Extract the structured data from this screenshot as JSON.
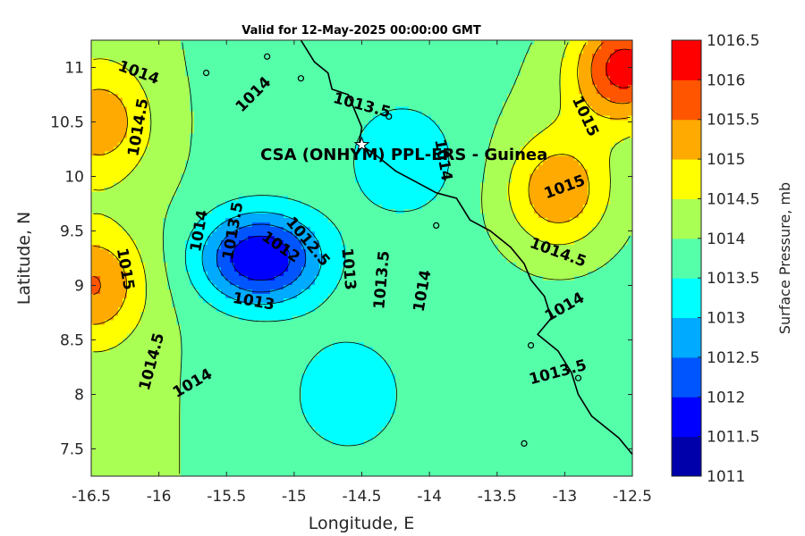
{
  "chart_data": {
    "type": "map",
    "title": "Valid for 12-May-2025 00:00:00 GMT",
    "xlabel": "Longitude, E",
    "ylabel": "Latitude, N",
    "xlim": [
      -16.5,
      -12.5
    ],
    "ylim": [
      7.25,
      11.25
    ],
    "x_ticks": [
      "-16.5",
      "-16",
      "-15.5",
      "-15",
      "-14.5",
      "-14",
      "-13.5",
      "-13",
      "-12.5"
    ],
    "y_ticks": [
      "7.5",
      "8",
      "8.5",
      "9",
      "9.5",
      "10",
      "10.5",
      "11"
    ],
    "station": {
      "label": "CSA (ONHYM) PPL-ERS  - Guinea",
      "lon": -14.5,
      "lat": 10.29
    },
    "colorbar": {
      "label": "Surface Pressure, mb",
      "ticks": [
        "1011",
        "1011.5",
        "1012",
        "1012.5",
        "1013",
        "1013.5",
        "1014",
        "1014.5",
        "1015",
        "1015.5",
        "1016",
        "1016.5"
      ],
      "levels": [
        1011,
        1011.5,
        1012,
        1012.5,
        1013,
        1013.5,
        1014,
        1014.5,
        1015,
        1015.5,
        1016,
        1016.5
      ],
      "colors": [
        "#0000aa",
        "#0000ff",
        "#0055ff",
        "#00aaff",
        "#00ffff",
        "#55ffaa",
        "#aaff55",
        "#ffff00",
        "#ffaa00",
        "#ff5500",
        "#ff0000",
        "#aa0000"
      ]
    },
    "pressure_centers": [
      {
        "kind": "low",
        "lon": -15.25,
        "lat": 9.25,
        "value": 1011.5
      },
      {
        "kind": "high",
        "lon": -16.5,
        "lat": 9.0,
        "value": 1015.2
      },
      {
        "kind": "high",
        "lon": -13.05,
        "lat": 9.85,
        "value": 1015.2
      },
      {
        "kind": "high",
        "lon": -12.55,
        "lat": 11.0,
        "value": 1016.2
      },
      {
        "kind": "high",
        "lon": -16.45,
        "lat": 10.5,
        "value": 1015.0
      },
      {
        "kind": "low",
        "lon": -14.2,
        "lat": 10.15,
        "value": 1013.0
      },
      {
        "kind": "low",
        "lon": -14.6,
        "lat": 8.0,
        "value": 1013.0
      }
    ],
    "contour_labels": [
      {
        "text": "1014",
        "lon": -16.15,
        "lat": 10.95,
        "rot": 20
      },
      {
        "text": "1014",
        "lon": -15.3,
        "lat": 10.75,
        "rot": -45
      },
      {
        "text": "1014.5",
        "lon": -16.15,
        "lat": 10.45,
        "rot": -80
      },
      {
        "text": "1013.5",
        "lon": -14.5,
        "lat": 10.65,
        "rot": 15
      },
      {
        "text": "1014",
        "lon": -13.9,
        "lat": 10.15,
        "rot": 80
      },
      {
        "text": "1015",
        "lon": -12.85,
        "lat": 10.55,
        "rot": 65
      },
      {
        "text": "1015",
        "lon": -13.0,
        "lat": 9.9,
        "rot": -20
      },
      {
        "text": "1014.5",
        "lon": -13.05,
        "lat": 9.3,
        "rot": 20
      },
      {
        "text": "1014",
        "lon": -13.0,
        "lat": 8.8,
        "rot": -30
      },
      {
        "text": "1013.5",
        "lon": -13.05,
        "lat": 8.2,
        "rot": -15
      },
      {
        "text": "1015",
        "lon": -16.25,
        "lat": 9.15,
        "rot": 80
      },
      {
        "text": "1014",
        "lon": -15.7,
        "lat": 9.5,
        "rot": -80
      },
      {
        "text": "1013.5",
        "lon": -15.45,
        "lat": 9.5,
        "rot": -80
      },
      {
        "text": "1012",
        "lon": -15.1,
        "lat": 9.35,
        "rot": 35
      },
      {
        "text": "1012.5",
        "lon": -14.9,
        "lat": 9.4,
        "rot": 50
      },
      {
        "text": "1013",
        "lon": -15.3,
        "lat": 8.85,
        "rot": 10
      },
      {
        "text": "1013",
        "lon": -14.6,
        "lat": 9.15,
        "rot": 85
      },
      {
        "text": "1013.5",
        "lon": -14.35,
        "lat": 9.05,
        "rot": -85
      },
      {
        "text": "1014",
        "lon": -14.05,
        "lat": 8.95,
        "rot": -80
      },
      {
        "text": "1014.5",
        "lon": -16.05,
        "lat": 8.3,
        "rot": -75
      },
      {
        "text": "1014",
        "lon": -15.75,
        "lat": 8.1,
        "rot": -30
      }
    ]
  }
}
